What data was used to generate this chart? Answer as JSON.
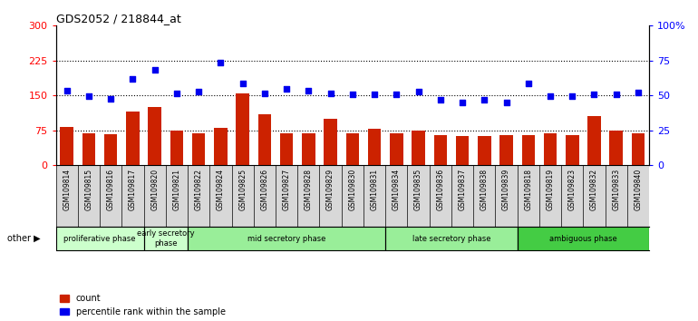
{
  "title": "GDS2052 / 218844_at",
  "samples": [
    "GSM109814",
    "GSM109815",
    "GSM109816",
    "GSM109817",
    "GSM109820",
    "GSM109821",
    "GSM109822",
    "GSM109824",
    "GSM109825",
    "GSM109826",
    "GSM109827",
    "GSM109828",
    "GSM109829",
    "GSM109830",
    "GSM109831",
    "GSM109834",
    "GSM109835",
    "GSM109836",
    "GSM109837",
    "GSM109838",
    "GSM109839",
    "GSM109818",
    "GSM109819",
    "GSM109823",
    "GSM109832",
    "GSM109833",
    "GSM109840"
  ],
  "bar_values": [
    82,
    68,
    66,
    115,
    125,
    75,
    68,
    80,
    155,
    110,
    68,
    68,
    100,
    68,
    78,
    68,
    75,
    65,
    62,
    62,
    65,
    65,
    68,
    65,
    105,
    75,
    68
  ],
  "dot_values": [
    160,
    148,
    143,
    185,
    205,
    155,
    158,
    220,
    175,
    155,
    165,
    160,
    155,
    152,
    153,
    152,
    158,
    140,
    135,
    140,
    135,
    175,
    148,
    148,
    153,
    153,
    157
  ],
  "phase_boundaries": [
    {
      "label": "proliferative phase",
      "start": 0,
      "end": 4,
      "color": "#ccffcc"
    },
    {
      "label": "early secretory\nphase",
      "start": 4,
      "end": 6,
      "color": "#ccffcc"
    },
    {
      "label": "mid secretory phase",
      "start": 6,
      "end": 15,
      "color": "#99ee99"
    },
    {
      "label": "late secretory phase",
      "start": 15,
      "end": 21,
      "color": "#99ee99"
    },
    {
      "label": "ambiguous phase",
      "start": 21,
      "end": 27,
      "color": "#44cc44"
    }
  ],
  "left_ylim": [
    0,
    300
  ],
  "right_ylim": [
    0,
    100
  ],
  "left_yticks": [
    0,
    75,
    150,
    225,
    300
  ],
  "right_yticks": [
    0,
    25,
    50,
    75,
    100
  ],
  "right_yticklabels": [
    "0",
    "25",
    "50",
    "75",
    "100%"
  ],
  "hgrid_vals": [
    75,
    150,
    225
  ],
  "bar_color": "#cc2200",
  "dot_color": "#0000ee",
  "other_label": "other"
}
